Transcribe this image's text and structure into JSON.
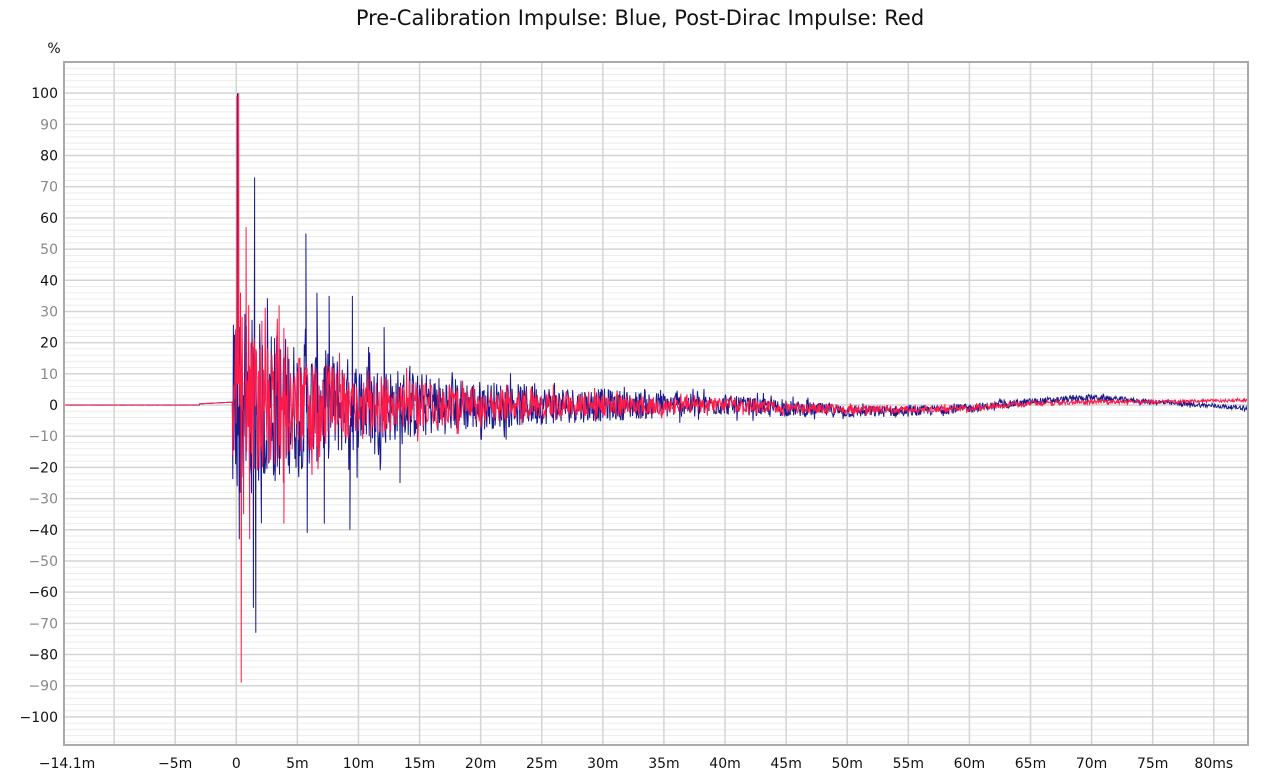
{
  "chart_data": {
    "type": "line",
    "title": "Pre-Calibration Impulse: Blue, Post-Dirac Impulse: Red",
    "xlabel": "",
    "ylabel": "%",
    "xlim": [
      -14.1,
      82.8
    ],
    "ylim": [
      -109,
      110
    ],
    "x_ticks": [
      -14.1,
      -5,
      0,
      5,
      10,
      15,
      20,
      25,
      30,
      35,
      40,
      45,
      50,
      55,
      60,
      65,
      70,
      75,
      80
    ],
    "x_tick_labels": [
      "-14.1m",
      "-5m",
      "0",
      "5m",
      "10m",
      "15m",
      "20m",
      "25m",
      "30m",
      "35m",
      "40m",
      "45m",
      "50m",
      "55m",
      "60m",
      "65m",
      "70m",
      "75m",
      "80ms"
    ],
    "x_grid": [
      -10,
      -5,
      0,
      5,
      10,
      15,
      20,
      25,
      30,
      35,
      40,
      45,
      50,
      55,
      60,
      65,
      70,
      75,
      80
    ],
    "y_ticks": [
      100,
      90,
      80,
      70,
      60,
      50,
      40,
      30,
      20,
      10,
      0,
      -10,
      -20,
      -30,
      -40,
      -50,
      -60,
      -70,
      -80,
      -90,
      -100
    ],
    "grid": true,
    "series": [
      {
        "name": "Pre-Calibration Impulse",
        "color": "#1a1a8c",
        "peaks_ms_pct": [
          [
            0.1,
            100
          ],
          [
            0.25,
            -43
          ],
          [
            1.4,
            -65
          ],
          [
            1.5,
            73
          ],
          [
            1.6,
            -73
          ],
          [
            5.7,
            55
          ],
          [
            5.8,
            -41
          ],
          [
            6.6,
            36
          ],
          [
            7.2,
            -38
          ],
          [
            7.6,
            35
          ],
          [
            9.3,
            -40
          ],
          [
            9.5,
            35
          ],
          [
            13.4,
            -25
          ],
          [
            12.1,
            25
          ]
        ],
        "envelope": {
          "start_ms": 0,
          "peak_pct": 28,
          "decay_ms": 11,
          "floor_pct": 3.5
        },
        "drift_pct": [
          [
            40,
            0
          ],
          [
            50,
            -2
          ],
          [
            55,
            -2
          ],
          [
            60,
            -1
          ],
          [
            65,
            1
          ],
          [
            70,
            2.5
          ],
          [
            75,
            1
          ],
          [
            82.8,
            -1
          ]
        ]
      },
      {
        "name": "Post-Dirac Impulse",
        "color": "#ff1a4a",
        "peaks_ms_pct": [
          [
            0.05,
            99
          ],
          [
            0.2,
            100
          ],
          [
            0.4,
            -89
          ],
          [
            0.8,
            57
          ],
          [
            1.1,
            -43
          ],
          [
            2.1,
            27
          ],
          [
            3.5,
            32
          ],
          [
            3.9,
            -38
          ],
          [
            0.6,
            -35
          ]
        ],
        "envelope": {
          "start_ms": 0,
          "peak_pct": 22,
          "decay_ms": 10,
          "floor_pct": 2.5
        },
        "drift_pct": [
          [
            40,
            0
          ],
          [
            50,
            -1.5
          ],
          [
            55,
            -1.5
          ],
          [
            60,
            -1
          ],
          [
            65,
            0.5
          ],
          [
            70,
            1
          ],
          [
            75,
            1
          ],
          [
            82.8,
            1.5
          ]
        ]
      }
    ]
  }
}
